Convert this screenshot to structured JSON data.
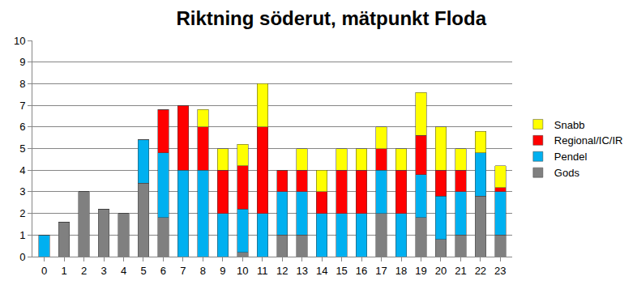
{
  "chart_data": {
    "type": "bar",
    "title": "Riktning söderut, mätpunkt Floda",
    "stacked": true,
    "grid": true,
    "legend": "right",
    "categories": [
      "0",
      "1",
      "2",
      "3",
      "4",
      "5",
      "6",
      "7",
      "8",
      "9",
      "10",
      "11",
      "12",
      "13",
      "14",
      "15",
      "16",
      "17",
      "18",
      "19",
      "20",
      "21",
      "22",
      "23"
    ],
    "series": [
      {
        "name": "Gods",
        "color": "#808080",
        "values": [
          0,
          1.6,
          3,
          2.2,
          2,
          3.4,
          1.8,
          0,
          0,
          0,
          0.2,
          0,
          1,
          1,
          0,
          0,
          0,
          2,
          0,
          1.8,
          0.8,
          1,
          2.8,
          1
        ]
      },
      {
        "name": "Pendel",
        "color": "#00b0f0",
        "values": [
          1,
          0,
          0,
          0,
          0,
          2,
          3,
          4,
          4,
          2,
          2,
          2,
          2,
          2,
          2,
          2,
          2,
          2,
          2,
          2,
          2,
          2,
          2,
          2
        ]
      },
      {
        "name": "Regional/IC/IR",
        "color": "#ff0000",
        "values": [
          0,
          0,
          0,
          0,
          0,
          0,
          2,
          3,
          2,
          2,
          2,
          4,
          1,
          1,
          1,
          2,
          2,
          1,
          2,
          1.8,
          1.2,
          1,
          0,
          0.2
        ]
      },
      {
        "name": "Snabb",
        "color": "#ffff00",
        "values": [
          0,
          0,
          0,
          0,
          0,
          0,
          0,
          0,
          0.8,
          1,
          1,
          2,
          0,
          1,
          1,
          1,
          1,
          1,
          1,
          2,
          2,
          1,
          1,
          1
        ]
      }
    ],
    "ylim": [
      0,
      10
    ],
    "yticks": [
      0,
      1,
      2,
      3,
      4,
      5,
      6,
      7,
      8,
      9,
      10
    ]
  }
}
